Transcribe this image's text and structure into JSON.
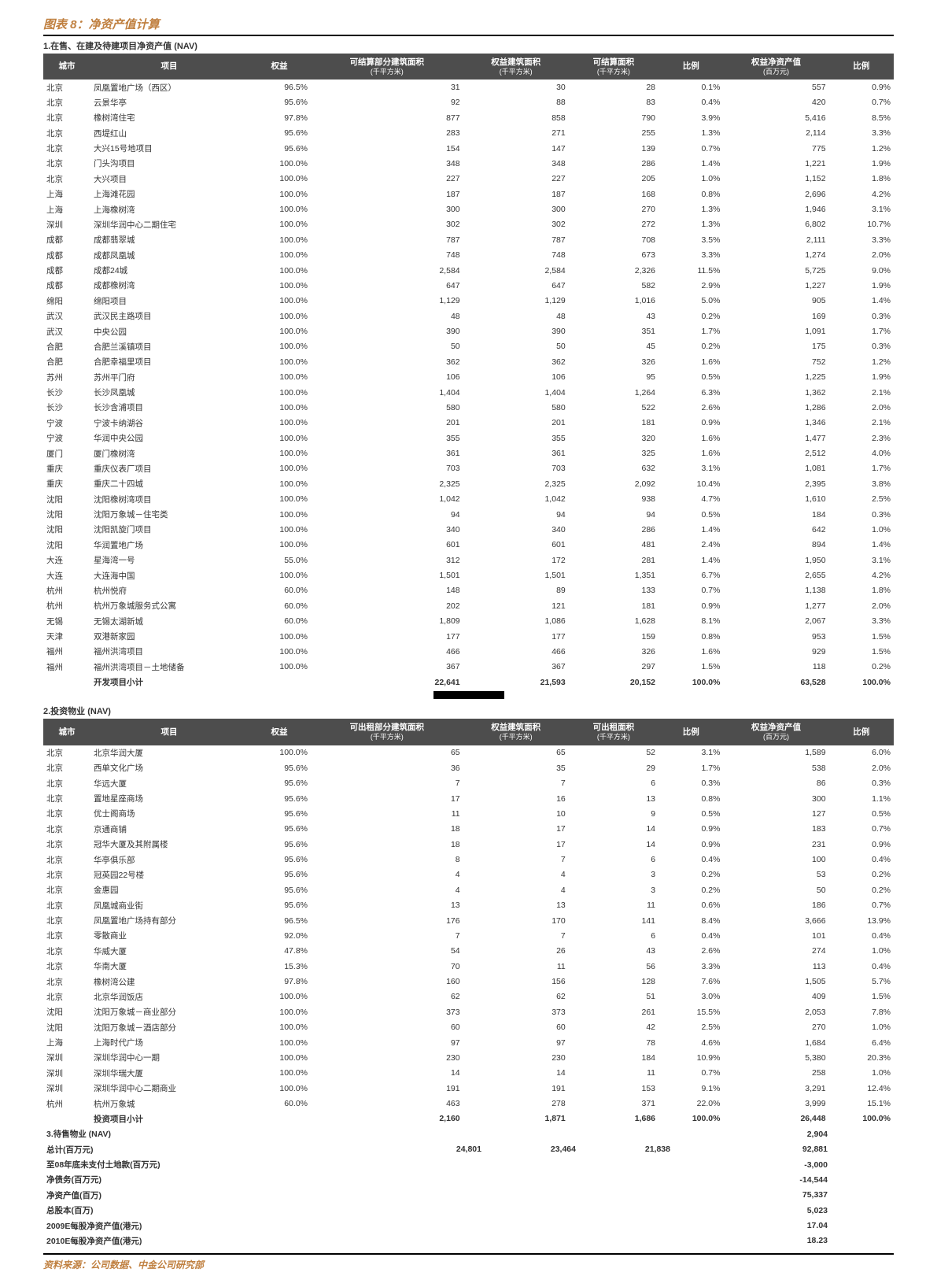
{
  "title": "图表 8：净资产值计算",
  "source": "资料来源：公司数据、中金公司研究部",
  "section1": {
    "label": "1.在售、在建及待建项目净资产值 (NAV)",
    "headers": {
      "city": "城市",
      "project": "项目",
      "equity": "权益",
      "col4": "可结算部分建筑面积",
      "col4_sub": "(千平方米)",
      "col5": "权益建筑面积",
      "col5_sub": "(千平方米)",
      "col6": "可结算面积",
      "col6_sub": "(千平方米)",
      "ratio1": "比例",
      "nav": "权益净资产值",
      "nav_sub": "(百万元)",
      "ratio2": "比例"
    },
    "rows": [
      [
        "北京",
        "凤凰置地广场（西区）",
        "96.5%",
        "31",
        "30",
        "28",
        "0.1%",
        "557",
        "0.9%"
      ],
      [
        "北京",
        "云景华亭",
        "95.6%",
        "92",
        "88",
        "83",
        "0.4%",
        "420",
        "0.7%"
      ],
      [
        "北京",
        "橡树湾住宅",
        "97.8%",
        "877",
        "858",
        "790",
        "3.9%",
        "5,416",
        "8.5%"
      ],
      [
        "北京",
        "西堤红山",
        "95.6%",
        "283",
        "271",
        "255",
        "1.3%",
        "2,114",
        "3.3%"
      ],
      [
        "北京",
        "大兴15号地项目",
        "95.6%",
        "154",
        "147",
        "139",
        "0.7%",
        "775",
        "1.2%"
      ],
      [
        "北京",
        "门头沟项目",
        "100.0%",
        "348",
        "348",
        "286",
        "1.4%",
        "1,221",
        "1.9%"
      ],
      [
        "北京",
        "大兴项目",
        "100.0%",
        "227",
        "227",
        "205",
        "1.0%",
        "1,152",
        "1.8%"
      ],
      [
        "上海",
        "上海滩花园",
        "100.0%",
        "187",
        "187",
        "168",
        "0.8%",
        "2,696",
        "4.2%"
      ],
      [
        "上海",
        "上海橡树湾",
        "100.0%",
        "300",
        "300",
        "270",
        "1.3%",
        "1,946",
        "3.1%"
      ],
      [
        "深圳",
        "深圳华润中心二期住宅",
        "100.0%",
        "302",
        "302",
        "272",
        "1.3%",
        "6,802",
        "10.7%"
      ],
      [
        "成都",
        "成都翡翠城",
        "100.0%",
        "787",
        "787",
        "708",
        "3.5%",
        "2,111",
        "3.3%"
      ],
      [
        "成都",
        "成都凤凰城",
        "100.0%",
        "748",
        "748",
        "673",
        "3.3%",
        "1,274",
        "2.0%"
      ],
      [
        "成都",
        "成都24城",
        "100.0%",
        "2,584",
        "2,584",
        "2,326",
        "11.5%",
        "5,725",
        "9.0%"
      ],
      [
        "成都",
        "成都橡树湾",
        "100.0%",
        "647",
        "647",
        "582",
        "2.9%",
        "1,227",
        "1.9%"
      ],
      [
        "绵阳",
        "绵阳项目",
        "100.0%",
        "1,129",
        "1,129",
        "1,016",
        "5.0%",
        "905",
        "1.4%"
      ],
      [
        "武汉",
        "武汉民主路项目",
        "100.0%",
        "48",
        "48",
        "43",
        "0.2%",
        "169",
        "0.3%"
      ],
      [
        "武汉",
        "中央公园",
        "100.0%",
        "390",
        "390",
        "351",
        "1.7%",
        "1,091",
        "1.7%"
      ],
      [
        "合肥",
        "合肥兰溪镇项目",
        "100.0%",
        "50",
        "50",
        "45",
        "0.2%",
        "175",
        "0.3%"
      ],
      [
        "合肥",
        "合肥幸福里项目",
        "100.0%",
        "362",
        "362",
        "326",
        "1.6%",
        "752",
        "1.2%"
      ],
      [
        "苏州",
        "苏州平门府",
        "100.0%",
        "106",
        "106",
        "95",
        "0.5%",
        "1,225",
        "1.9%"
      ],
      [
        "长沙",
        "长沙凤凰城",
        "100.0%",
        "1,404",
        "1,404",
        "1,264",
        "6.3%",
        "1,362",
        "2.1%"
      ],
      [
        "长沙",
        "长沙含浦项目",
        "100.0%",
        "580",
        "580",
        "522",
        "2.6%",
        "1,286",
        "2.0%"
      ],
      [
        "宁波",
        "宁波卡纳湖谷",
        "100.0%",
        "201",
        "201",
        "181",
        "0.9%",
        "1,346",
        "2.1%"
      ],
      [
        "宁波",
        "华润中央公园",
        "100.0%",
        "355",
        "355",
        "320",
        "1.6%",
        "1,477",
        "2.3%"
      ],
      [
        "厦门",
        "厦门橡树湾",
        "100.0%",
        "361",
        "361",
        "325",
        "1.6%",
        "2,512",
        "4.0%"
      ],
      [
        "重庆",
        "重庆仪表厂项目",
        "100.0%",
        "703",
        "703",
        "632",
        "3.1%",
        "1,081",
        "1.7%"
      ],
      [
        "重庆",
        "重庆二十四城",
        "100.0%",
        "2,325",
        "2,325",
        "2,092",
        "10.4%",
        "2,395",
        "3.8%"
      ],
      [
        "沈阳",
        "沈阳橡树湾项目",
        "100.0%",
        "1,042",
        "1,042",
        "938",
        "4.7%",
        "1,610",
        "2.5%"
      ],
      [
        "沈阳",
        "沈阳万象城－住宅类",
        "100.0%",
        "94",
        "94",
        "94",
        "0.5%",
        "184",
        "0.3%"
      ],
      [
        "沈阳",
        "沈阳凯旋门项目",
        "100.0%",
        "340",
        "340",
        "286",
        "1.4%",
        "642",
        "1.0%"
      ],
      [
        "沈阳",
        "华润置地广场",
        "100.0%",
        "601",
        "601",
        "481",
        "2.4%",
        "894",
        "1.4%"
      ],
      [
        "大连",
        "星海湾一号",
        "55.0%",
        "312",
        "172",
        "281",
        "1.4%",
        "1,950",
        "3.1%"
      ],
      [
        "大连",
        "大连海中国",
        "100.0%",
        "1,501",
        "1,501",
        "1,351",
        "6.7%",
        "2,655",
        "4.2%"
      ],
      [
        "杭州",
        "杭州悦府",
        "60.0%",
        "148",
        "89",
        "133",
        "0.7%",
        "1,138",
        "1.8%"
      ],
      [
        "杭州",
        "杭州万象城服务式公寓",
        "60.0%",
        "202",
        "121",
        "181",
        "0.9%",
        "1,277",
        "2.0%"
      ],
      [
        "无锡",
        "无锡太湖新城",
        "60.0%",
        "1,809",
        "1,086",
        "1,628",
        "8.1%",
        "2,067",
        "3.3%"
      ],
      [
        "天津",
        "双港新家园",
        "100.0%",
        "177",
        "177",
        "159",
        "0.8%",
        "953",
        "1.5%"
      ],
      [
        "福州",
        "福州洪湾项目",
        "100.0%",
        "466",
        "466",
        "326",
        "1.6%",
        "929",
        "1.5%"
      ],
      [
        "福州",
        "福州洪湾项目－土地储备",
        "100.0%",
        "367",
        "367",
        "297",
        "1.5%",
        "118",
        "0.2%"
      ]
    ],
    "subtotal": [
      "",
      "开发项目小计",
      "",
      "22,641",
      "21,593",
      "20,152",
      "100.0%",
      "63,528",
      "100.0%"
    ]
  },
  "section2": {
    "label": "2.投资物业 (NAV)",
    "headers": {
      "city": "城市",
      "project": "项目",
      "equity": "权益",
      "col4": "可出租部分建筑面积",
      "col4_sub": "(千平方米)",
      "col5": "权益建筑面积",
      "col5_sub": "(千平方米)",
      "col6": "可出租面积",
      "col6_sub": "(千平方米)",
      "ratio1": "比例",
      "nav": "权益净资产值",
      "nav_sub": "(百万元)",
      "ratio2": "比例"
    },
    "rows": [
      [
        "北京",
        "北京华润大厦",
        "100.0%",
        "65",
        "65",
        "52",
        "3.1%",
        "1,589",
        "6.0%"
      ],
      [
        "北京",
        "西单文化广场",
        "95.6%",
        "36",
        "35",
        "29",
        "1.7%",
        "538",
        "2.0%"
      ],
      [
        "北京",
        "华远大厦",
        "95.6%",
        "7",
        "7",
        "6",
        "0.3%",
        "86",
        "0.3%"
      ],
      [
        "北京",
        "置地星座商场",
        "95.6%",
        "17",
        "16",
        "13",
        "0.8%",
        "300",
        "1.1%"
      ],
      [
        "北京",
        "优士阁商场",
        "95.6%",
        "11",
        "10",
        "9",
        "0.5%",
        "127",
        "0.5%"
      ],
      [
        "北京",
        "京通商铺",
        "95.6%",
        "18",
        "17",
        "14",
        "0.9%",
        "183",
        "0.7%"
      ],
      [
        "北京",
        "冠华大厦及其附属楼",
        "95.6%",
        "18",
        "17",
        "14",
        "0.9%",
        "231",
        "0.9%"
      ],
      [
        "北京",
        "华亭俱乐部",
        "95.6%",
        "8",
        "7",
        "6",
        "0.4%",
        "100",
        "0.4%"
      ],
      [
        "北京",
        "冠英园22号楼",
        "95.6%",
        "4",
        "4",
        "3",
        "0.2%",
        "53",
        "0.2%"
      ],
      [
        "北京",
        "金惠园",
        "95.6%",
        "4",
        "4",
        "3",
        "0.2%",
        "50",
        "0.2%"
      ],
      [
        "北京",
        "凤凰城商业街",
        "95.6%",
        "13",
        "13",
        "11",
        "0.6%",
        "186",
        "0.7%"
      ],
      [
        "北京",
        "凤凰置地广场持有部分",
        "96.5%",
        "176",
        "170",
        "141",
        "8.4%",
        "3,666",
        "13.9%"
      ],
      [
        "北京",
        "零散商业",
        "92.0%",
        "7",
        "7",
        "6",
        "0.4%",
        "101",
        "0.4%"
      ],
      [
        "北京",
        "华威大厦",
        "47.8%",
        "54",
        "26",
        "43",
        "2.6%",
        "274",
        "1.0%"
      ],
      [
        "北京",
        "华南大厦",
        "15.3%",
        "70",
        "11",
        "56",
        "3.3%",
        "113",
        "0.4%"
      ],
      [
        "北京",
        "橡树湾公建",
        "97.8%",
        "160",
        "156",
        "128",
        "7.6%",
        "1,505",
        "5.7%"
      ],
      [
        "北京",
        "北京华润饭店",
        "100.0%",
        "62",
        "62",
        "51",
        "3.0%",
        "409",
        "1.5%"
      ],
      [
        "沈阳",
        "沈阳万象城－商业部分",
        "100.0%",
        "373",
        "373",
        "261",
        "15.5%",
        "2,053",
        "7.8%"
      ],
      [
        "沈阳",
        "沈阳万象城－酒店部分",
        "100.0%",
        "60",
        "60",
        "42",
        "2.5%",
        "270",
        "1.0%"
      ],
      [
        "上海",
        "上海时代广场",
        "100.0%",
        "97",
        "97",
        "78",
        "4.6%",
        "1,684",
        "6.4%"
      ],
      [
        "深圳",
        "深圳华润中心一期",
        "100.0%",
        "230",
        "230",
        "184",
        "10.9%",
        "5,380",
        "20.3%"
      ],
      [
        "深圳",
        "深圳华瑞大厦",
        "100.0%",
        "14",
        "14",
        "11",
        "0.7%",
        "258",
        "1.0%"
      ],
      [
        "深圳",
        "深圳华润中心二期商业",
        "100.0%",
        "191",
        "191",
        "153",
        "9.1%",
        "3,291",
        "12.4%"
      ],
      [
        "杭州",
        "杭州万象城",
        "60.0%",
        "463",
        "278",
        "371",
        "22.0%",
        "3,999",
        "15.1%"
      ]
    ],
    "subtotal": [
      "",
      "投资项目小计",
      "",
      "2,160",
      "1,871",
      "1,686",
      "100.0%",
      "26,448",
      "100.0%"
    ]
  },
  "summary": [
    {
      "label": "3.待售物业 (NAV)",
      "c4": "",
      "c5": "",
      "c6": "",
      "val": "2,904"
    },
    {
      "label": "总计(百万元)",
      "c4": "24,801",
      "c5": "23,464",
      "c6": "21,838",
      "val": "92,881"
    },
    {
      "label": "至08年底未支付土地款(百万元)",
      "c4": "",
      "c5": "",
      "c6": "",
      "val": "-3,000"
    },
    {
      "label": "净债务(百万元)",
      "c4": "",
      "c5": "",
      "c6": "",
      "val": "-14,544"
    },
    {
      "label": "净资产值(百万)",
      "c4": "",
      "c5": "",
      "c6": "",
      "val": "75,337"
    },
    {
      "label": "总股本(百万)",
      "c4": "",
      "c5": "",
      "c6": "",
      "val": "5,023"
    },
    {
      "label": "2009E每股净资产值(港元)",
      "c4": "",
      "c5": "",
      "c6": "",
      "val": "17.04"
    },
    {
      "label": "2010E每股净资产值(港元)",
      "c4": "",
      "c5": "",
      "c6": "",
      "val": "18.23"
    }
  ],
  "colors": {
    "accent": "#c08040",
    "header_bg": "#4d4d4d"
  }
}
